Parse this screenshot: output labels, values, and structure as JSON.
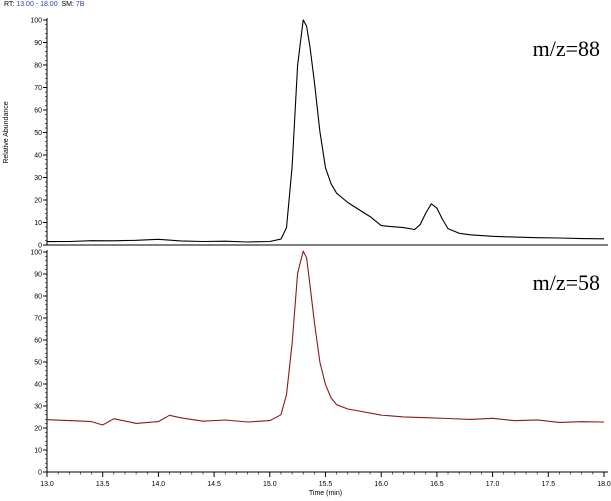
{
  "header": {
    "rt_label": "RT:",
    "rt_value": "13.00 - 18.00",
    "sm_label": "SM:",
    "sm_value": "7B"
  },
  "colors": {
    "trace_top": "#000000",
    "trace_bottom": "#8b1a1a"
  },
  "chart_data": [
    {
      "type": "line",
      "trace_label": "m/z=88",
      "ylabel": "Relative Abundance",
      "xlabel": "",
      "xlim": [
        13.0,
        18.0
      ],
      "ylim": [
        0,
        100
      ],
      "xticks": [
        "13.0",
        "13.5",
        "14.0",
        "14.5",
        "15.0",
        "15.5",
        "16.0",
        "16.5",
        "17.0",
        "17.5",
        "18.0"
      ],
      "yticks": [
        "0",
        "10",
        "20",
        "30",
        "40",
        "50",
        "60",
        "70",
        "80",
        "90",
        "100"
      ],
      "series": [
        {
          "x": [
            13.0,
            13.2,
            13.4,
            13.6,
            13.8,
            14.0,
            14.2,
            14.4,
            14.6,
            14.8,
            15.0,
            15.1,
            15.15,
            15.2,
            15.25,
            15.3,
            15.33,
            15.36,
            15.4,
            15.45,
            15.5,
            15.55,
            15.6,
            15.7,
            15.8,
            15.9,
            16.0,
            16.1,
            16.2,
            16.3,
            16.35,
            16.4,
            16.45,
            16.5,
            16.55,
            16.6,
            16.7,
            16.8,
            17.0,
            17.2,
            17.4,
            17.6,
            17.8,
            18.0
          ],
          "y": [
            1.5,
            1.4,
            1.6,
            1.5,
            1.7,
            2.2,
            1.6,
            1.5,
            1.8,
            1.6,
            1.9,
            3,
            8,
            35,
            80,
            100,
            97,
            88,
            72,
            50,
            34,
            27,
            23,
            19,
            16,
            13,
            9,
            8.5,
            8,
            7,
            9,
            14,
            18,
            16,
            11,
            7,
            5,
            4.5,
            4,
            3.8,
            3.6,
            3.5,
            3.2,
            3
          ]
        }
      ]
    },
    {
      "type": "line",
      "trace_label": "m/z=58",
      "ylabel": "",
      "xlabel": "Time (min)",
      "xlim": [
        13.0,
        18.0
      ],
      "ylim": [
        0,
        100
      ],
      "xticks": [
        "13.0",
        "13.5",
        "14.0",
        "14.5",
        "15.0",
        "15.5",
        "16.0",
        "16.5",
        "17.0",
        "17.5",
        "18.0"
      ],
      "yticks": [
        "0",
        "10",
        "20",
        "30",
        "40",
        "50",
        "60",
        "70",
        "80",
        "90",
        "100"
      ],
      "series": [
        {
          "x": [
            13.0,
            13.2,
            13.4,
            13.5,
            13.6,
            13.8,
            14.0,
            14.1,
            14.2,
            14.4,
            14.6,
            14.8,
            15.0,
            15.1,
            15.15,
            15.2,
            15.25,
            15.3,
            15.33,
            15.36,
            15.4,
            15.45,
            15.5,
            15.55,
            15.6,
            15.7,
            15.8,
            16.0,
            16.2,
            16.4,
            16.6,
            16.8,
            17.0,
            17.2,
            17.4,
            17.6,
            17.8,
            18.0
          ],
          "y": [
            23.5,
            23,
            22.5,
            21,
            24,
            22,
            23,
            26,
            25,
            23.5,
            24,
            23,
            23.5,
            26,
            35,
            58,
            90,
            100,
            97,
            85,
            68,
            50,
            40,
            34,
            31,
            29,
            28,
            26,
            25,
            24.5,
            24,
            23.5,
            24,
            23,
            23.5,
            22.5,
            23,
            23
          ]
        }
      ]
    }
  ]
}
